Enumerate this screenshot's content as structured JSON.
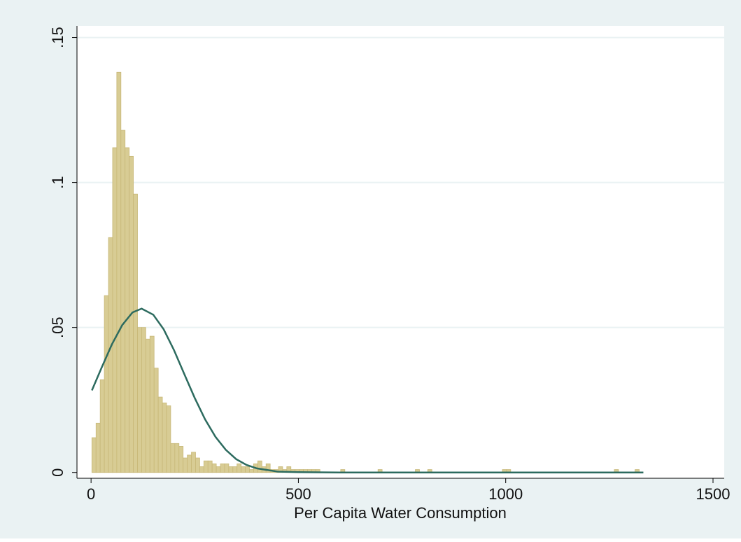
{
  "chart_data": {
    "type": "histogram",
    "x_label": "Per Capita Water Consumption",
    "bins": [
      2,
      12,
      22,
      32,
      42,
      52,
      62,
      72,
      82,
      92,
      102,
      112,
      122,
      132,
      142,
      152,
      162,
      172,
      182,
      192,
      202,
      212,
      222,
      232,
      242,
      252,
      262,
      272,
      282,
      292,
      302,
      312,
      322,
      332,
      342,
      352,
      362,
      372,
      382,
      392,
      402,
      412,
      422,
      432,
      442,
      452,
      462,
      472,
      482,
      492,
      502,
      512,
      522,
      532,
      542,
      552,
      562,
      572,
      582,
      592,
      602,
      612,
      622,
      632,
      642,
      652,
      662,
      672,
      682,
      692,
      702,
      712,
      722,
      732,
      742,
      752,
      762,
      772,
      782,
      792,
      802,
      812,
      822,
      832,
      842,
      852,
      862,
      872,
      882,
      892,
      902,
      912,
      922,
      932,
      942,
      952,
      962,
      972,
      982,
      992,
      1002,
      1012,
      1022,
      1032,
      1042,
      1052,
      1062,
      1072,
      1082,
      1092,
      1102,
      1112,
      1122,
      1132,
      1142,
      1152,
      1162,
      1172,
      1182,
      1192,
      1202,
      1212,
      1222,
      1232,
      1242,
      1252,
      1262,
      1272,
      1282,
      1292,
      1302,
      1312,
      1322,
      1332
    ],
    "values": [
      0.012,
      0.017,
      0.032,
      0.061,
      0.081,
      0.112,
      0.138,
      0.118,
      0.112,
      0.109,
      0.096,
      0.05,
      0.05,
      0.046,
      0.047,
      0.036,
      0.026,
      0.024,
      0.023,
      0.01,
      0.01,
      0.009,
      0.005,
      0.006,
      0.007,
      0.005,
      0.002,
      0.004,
      0.004,
      0.003,
      0.002,
      0.003,
      0.003,
      0.002,
      0.002,
      0.003,
      0.002,
      0.002,
      0.001,
      0.003,
      0.004,
      0.002,
      0.003,
      0.001,
      0.001,
      0.002,
      0.001,
      0.002,
      0.001,
      0.001,
      0.001,
      0.001,
      0.001,
      0.001,
      0.001,
      0,
      0,
      0,
      0,
      0,
      0.001,
      0,
      0,
      0,
      0,
      0,
      0,
      0,
      0,
      0.001,
      0,
      0,
      0,
      0,
      0,
      0,
      0,
      0,
      0.001,
      0,
      0,
      0.001,
      0,
      0,
      0,
      0,
      0,
      0,
      0,
      0,
      0,
      0,
      0,
      0,
      0,
      0,
      0,
      0,
      0,
      0.001,
      0.001,
      0,
      0,
      0,
      0,
      0,
      0,
      0,
      0,
      0,
      0,
      0,
      0,
      0,
      0,
      0,
      0,
      0,
      0,
      0,
      0,
      0,
      0,
      0,
      0,
      0,
      0.001,
      0,
      0,
      0,
      0,
      0.001,
      0
    ],
    "color": "#d8cc94",
    "overlay": {
      "type": "line",
      "color": "#2d6b5f",
      "x": [
        2,
        25,
        50,
        75,
        100,
        122,
        150,
        175,
        200,
        225,
        250,
        275,
        300,
        325,
        350,
        375,
        400,
        450,
        500,
        600,
        800,
        1000,
        1200,
        1332
      ],
      "values": [
        0.0283,
        0.036,
        0.0441,
        0.0508,
        0.0552,
        0.0565,
        0.0544,
        0.0494,
        0.0422,
        0.0339,
        0.0257,
        0.0183,
        0.0123,
        0.0078,
        0.0046,
        0.0026,
        0.0014,
        0.0003,
        0.0001,
        0,
        0,
        0,
        0,
        0
      ]
    },
    "xlim": [
      -34,
      1527
    ],
    "ylim": [
      -0.002,
      0.154
    ],
    "xticks": [
      0,
      500,
      1000,
      1500
    ],
    "yticks": [
      0,
      {
        "value": 0.05,
        "label": ".05"
      },
      {
        "value": 0.1,
        "label": ".1"
      },
      {
        "value": 0.15,
        "label": ".15"
      }
    ],
    "grid": true
  }
}
